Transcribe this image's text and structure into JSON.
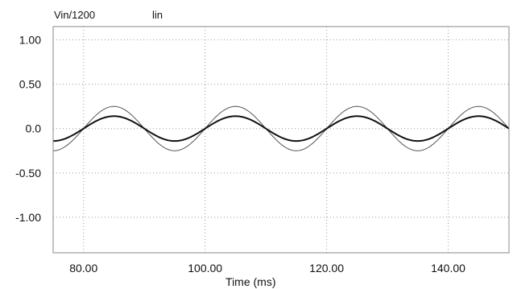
{
  "header": {
    "expression": "Vin/1200",
    "scale_mode": "lin"
  },
  "chart_data": {
    "type": "line",
    "title": "",
    "xlabel": "Time (ms)",
    "ylabel": "",
    "xlim": [
      75,
      150
    ],
    "ylim": [
      -1.4,
      1.15
    ],
    "x_ticks": [
      80,
      100,
      120,
      140
    ],
    "x_tick_labels": [
      "80.00",
      "100.00",
      "120.00",
      "140.00"
    ],
    "y_ticks": [
      1.0,
      0.5,
      0.0,
      -0.5,
      -1.0
    ],
    "y_tick_labels": [
      "1.00",
      "0.50",
      "0.0",
      "-0.50",
      "-1.00"
    ],
    "grid": true,
    "grid_style": "dotted",
    "legend": "none",
    "x": [
      75,
      77.5,
      80,
      82.5,
      85,
      87.5,
      90,
      92.5,
      95,
      97.5,
      100,
      102.5,
      105,
      107.5,
      110,
      112.5,
      115,
      117.5,
      120,
      122.5,
      125,
      127.5,
      130,
      132.5,
      135,
      137.5,
      140,
      142.5,
      145,
      147.5,
      150
    ],
    "series": [
      {
        "values": [
          -0.25,
          -0.18,
          0.0,
          0.18,
          0.25,
          0.18,
          0.0,
          -0.18,
          -0.25,
          -0.18,
          0.0,
          0.18,
          0.25,
          0.18,
          0.0,
          -0.18,
          -0.25,
          -0.18,
          0.0,
          0.18,
          0.25,
          0.18,
          0.0,
          -0.18,
          -0.25,
          -0.18,
          0.0,
          0.18,
          0.25,
          0.18,
          0.0
        ],
        "color": "#555555",
        "width": 1
      },
      {
        "values": [
          -0.14,
          -0.1,
          0.0,
          0.1,
          0.14,
          0.1,
          0.0,
          -0.1,
          -0.14,
          -0.1,
          0.0,
          0.1,
          0.14,
          0.1,
          0.0,
          -0.1,
          -0.14,
          -0.1,
          0.0,
          0.1,
          0.14,
          0.1,
          0.0,
          -0.1,
          -0.14,
          -0.1,
          0.0,
          0.1,
          0.14,
          0.1,
          0.0
        ],
        "color": "#111111",
        "width": 2
      }
    ]
  }
}
